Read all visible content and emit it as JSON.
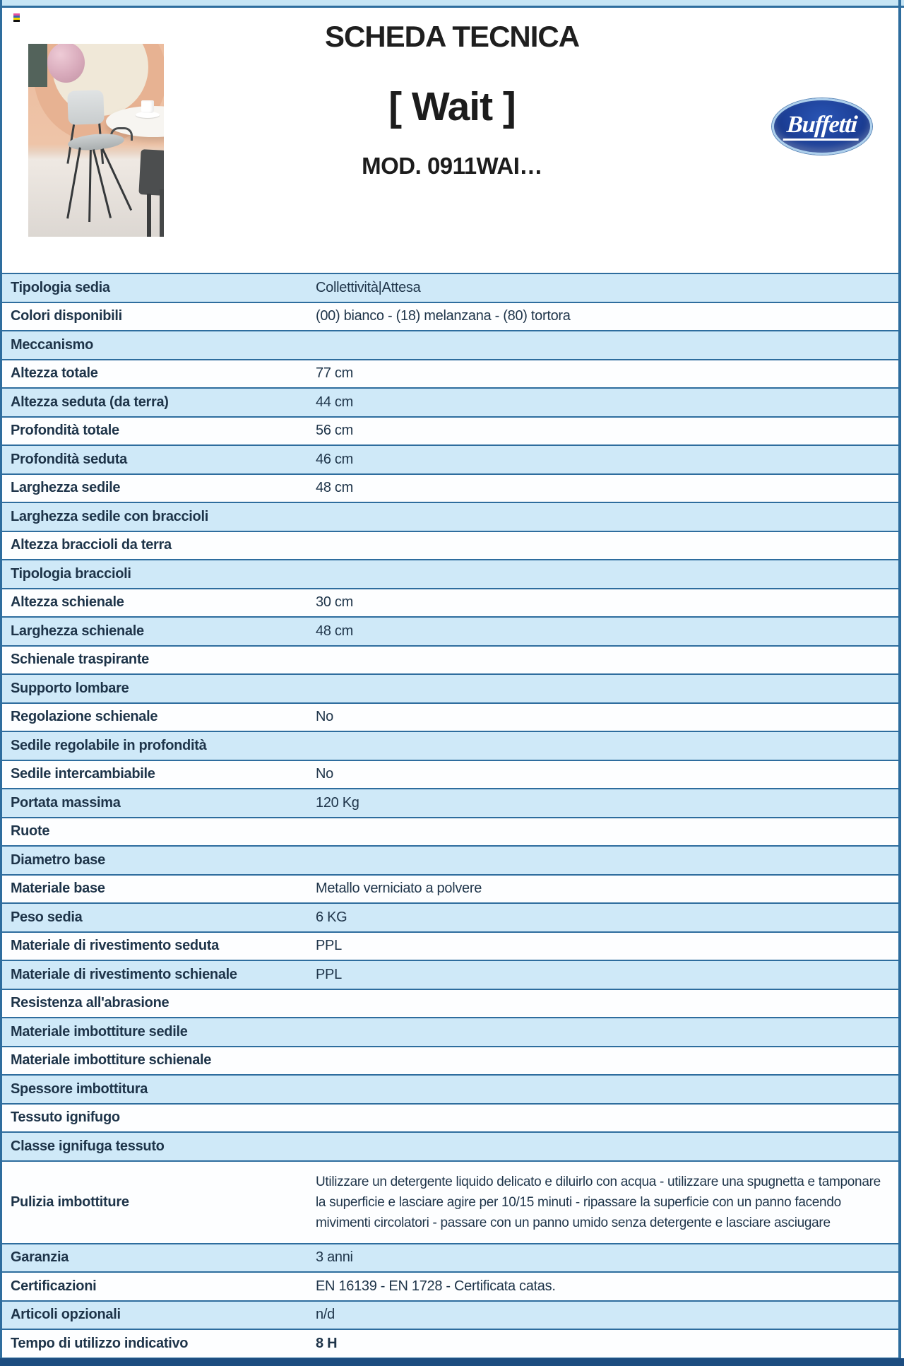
{
  "page": {
    "title": "SCHEDA TECNICA",
    "product_name": "[ Wait ]",
    "model": "MOD. 0911WAI…",
    "logo_text": "Buffetti"
  },
  "colors": {
    "band_top": "#c6e5f5",
    "band_bottom": "#1d4d80",
    "border_blue": "#2e6d9e",
    "row_blue": "#cfe9f8",
    "row_white": "#fdfeff",
    "text_dark": "#1e3449",
    "logo_navy": "#1c3f97"
  },
  "print_mark": {
    "stripe_colors": [
      "#e8519e",
      "#3a67b0",
      "#f5d900",
      "#111111"
    ]
  },
  "table": {
    "rows": [
      {
        "label": "Tipologia sedia",
        "value": "Collettività|Attesa",
        "shade": "blue"
      },
      {
        "label": "Colori disponibili",
        "value": "(00) bianco - (18) melanzana - (80) tortora",
        "shade": "white"
      },
      {
        "label": "Meccanismo",
        "value": "",
        "shade": "blue"
      },
      {
        "label": "Altezza totale",
        "value": "77 cm",
        "shade": "white"
      },
      {
        "label": "Altezza seduta (da terra)",
        "value": "44 cm",
        "shade": "blue"
      },
      {
        "label": "Profondità totale",
        "value": "56 cm",
        "shade": "white"
      },
      {
        "label": "Profondità seduta",
        "value": "46 cm",
        "shade": "blue"
      },
      {
        "label": "Larghezza sedile",
        "value": "48 cm",
        "shade": "white"
      },
      {
        "label": "Larghezza sedile con braccioli",
        "value": "",
        "shade": "blue"
      },
      {
        "label": "Altezza braccioli da terra",
        "value": "",
        "shade": "white"
      },
      {
        "label": "Tipologia braccioli",
        "value": "",
        "shade": "blue"
      },
      {
        "label": "Altezza schienale",
        "value": "30 cm",
        "shade": "white"
      },
      {
        "label": "Larghezza schienale",
        "value": "48 cm",
        "shade": "blue"
      },
      {
        "label": "Schienale traspirante",
        "value": "",
        "shade": "white"
      },
      {
        "label": "Supporto lombare",
        "value": "",
        "shade": "blue"
      },
      {
        "label": "Regolazione schienale",
        "value": "No",
        "shade": "white"
      },
      {
        "label": "Sedile regolabile in profondità",
        "value": "",
        "shade": "blue"
      },
      {
        "label": "Sedile intercambiabile",
        "value": "No",
        "shade": "white"
      },
      {
        "label": "Portata massima",
        "value": "120 Kg",
        "shade": "blue"
      },
      {
        "label": "Ruote",
        "value": "",
        "shade": "white"
      },
      {
        "label": "Diametro base",
        "value": "",
        "shade": "blue"
      },
      {
        "label": "Materiale base",
        "value": "Metallo verniciato a polvere",
        "shade": "white"
      },
      {
        "label": "Peso sedia",
        "value": "6 KG",
        "shade": "blue"
      },
      {
        "label": "Materiale di rivestimento seduta",
        "value": "PPL",
        "shade": "white"
      },
      {
        "label": "Materiale di rivestimento schienale",
        "value": "PPL",
        "shade": "blue"
      },
      {
        "label": "Resistenza all'abrasione",
        "value": "",
        "shade": "white"
      },
      {
        "label": "Materiale imbottiture sedile",
        "value": "",
        "shade": "blue"
      },
      {
        "label": "Materiale imbottiture schienale",
        "value": "",
        "shade": "white"
      },
      {
        "label": "Spessore imbottitura",
        "value": "",
        "shade": "blue"
      },
      {
        "label": "Tessuto ignifugo",
        "value": "",
        "shade": "white"
      },
      {
        "label": "Classe ignifuga tessuto",
        "value": "",
        "shade": "blue"
      },
      {
        "label": "Pulizia imbottiture",
        "value": "Utilizzare un detergente liquido delicato e diluirlo con acqua - utilizzare una spugnetta e tamponare la superficie e lasciare agire per 10/15 minuti - ripassare la superficie con un panno facendo mivimenti circolatori - passare con un panno umido senza detergente e lasciare asciugare",
        "shade": "white",
        "tall": true
      },
      {
        "label": "Garanzia",
        "value": "3 anni",
        "shade": "blue"
      },
      {
        "label": "Certificazioni",
        "value": "EN 16139 - EN 1728 - Certificata catas.",
        "shade": "white"
      },
      {
        "label": "Articoli opzionali",
        "value": "n/d",
        "shade": "blue"
      },
      {
        "label": "Tempo di utilizzo indicativo",
        "value": "8 H",
        "shade": "white",
        "bold": true
      }
    ]
  }
}
